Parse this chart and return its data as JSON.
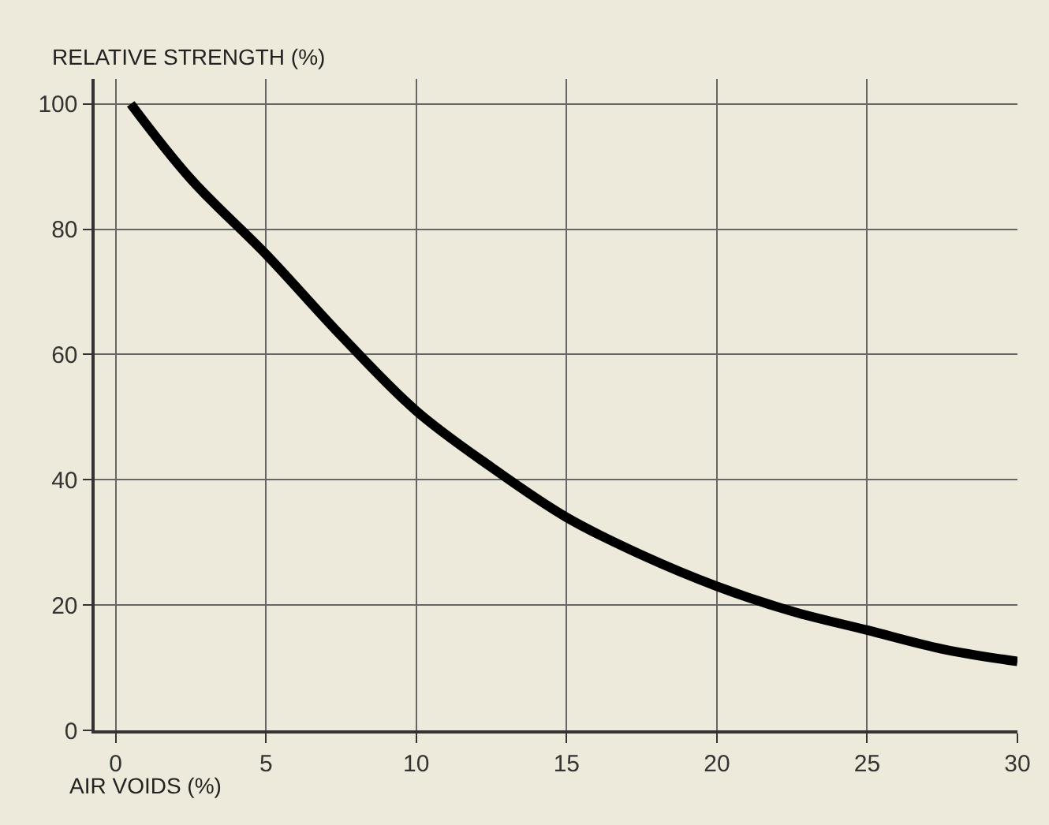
{
  "chart_data": {
    "type": "line",
    "xlabel": "AIR VOIDS (%)",
    "ylabel": "RELATIVE STRENGTH (%)",
    "x": [
      0.5,
      2.5,
      5,
      7.5,
      10,
      12.5,
      15,
      17.5,
      20,
      22.5,
      25,
      27.5,
      30
    ],
    "series": [
      {
        "color": "#000000",
        "values": [
          100,
          88,
          76,
          63,
          51,
          42,
          34,
          28,
          23,
          19,
          16,
          13,
          11
        ]
      }
    ],
    "xlim": [
      -0.7,
      30
    ],
    "ylim": [
      0,
      104
    ],
    "xticks": [
      0,
      5,
      10,
      15,
      20,
      25,
      30
    ],
    "yticks": [
      0,
      20,
      40,
      60,
      80,
      100
    ],
    "grid": true,
    "marker": "none",
    "line_style": "solid"
  }
}
